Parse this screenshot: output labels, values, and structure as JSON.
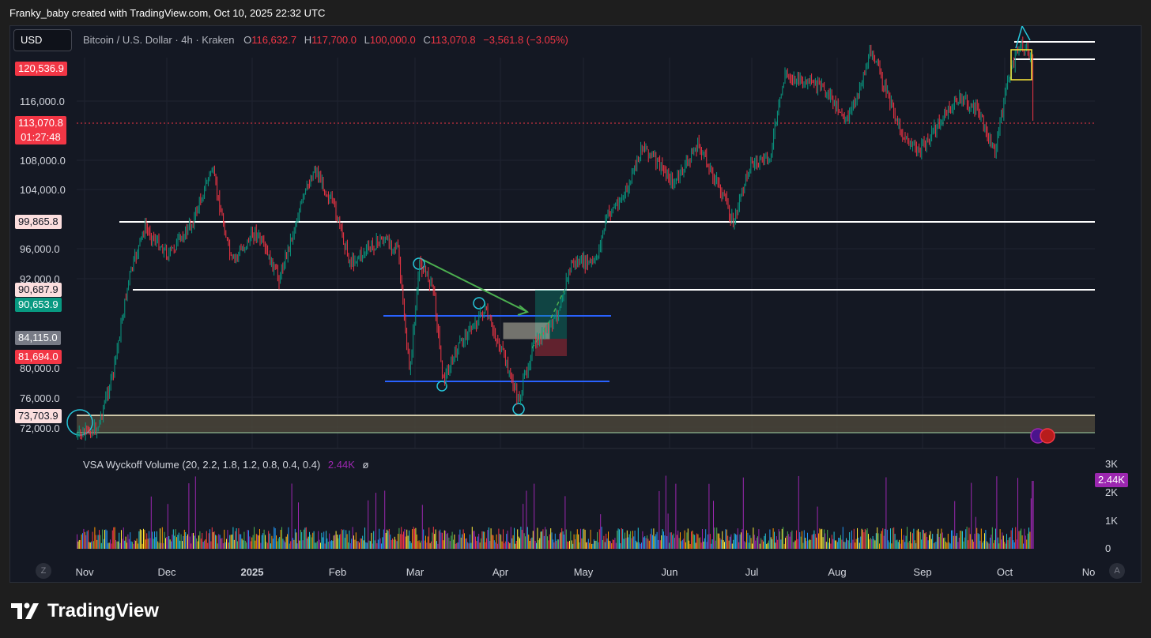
{
  "header": {
    "attribution": "Franky_baby created with TradingView.com, Oct 10, 2025 22:32 UTC"
  },
  "toolbar": {
    "currency": "USD"
  },
  "legend": {
    "symbol": "Bitcoin / U.S. Dollar · 4h · Kraken",
    "o_label": "O",
    "o_value": "116,632.7",
    "h_label": "H",
    "h_value": "117,700.0",
    "l_label": "L",
    "l_value": "100,000.0",
    "c_label": "C",
    "c_value": "113,070.8",
    "change": "−3,561.8 (−3.05%)"
  },
  "price_axis": [
    "116,000.0",
    "108,000.0",
    "104,000.0",
    "96,000.0",
    "92,000.0",
    "80,000.0",
    "76,000.0",
    "72,000.0"
  ],
  "price_tags": [
    {
      "value": "120,536.9",
      "bg": "#f23645",
      "fg": "#ffffff"
    },
    {
      "value": "113,070.8",
      "sub": "01:27:48",
      "bg": "#f23645",
      "fg": "#ffffff"
    },
    {
      "value": "99,865.8",
      "bg": "#fcdede",
      "fg": "#131722"
    },
    {
      "value": "90,687.9",
      "bg": "#fcdede",
      "fg": "#131722"
    },
    {
      "value": "90,653.9",
      "bg": "#089981",
      "fg": "#ffffff"
    },
    {
      "value": "84,115.0",
      "bg": "#787b86",
      "fg": "#ffffff"
    },
    {
      "value": "81,694.0",
      "bg": "#f23645",
      "fg": "#ffffff"
    },
    {
      "value": "73,703.9",
      "bg": "#fcdede",
      "fg": "#131722"
    }
  ],
  "time_axis": [
    "Nov",
    "Dec",
    "2025",
    "Feb",
    "Mar",
    "Apr",
    "May",
    "Jun",
    "Jul",
    "Aug",
    "Sep",
    "Oct",
    "No"
  ],
  "volume": {
    "title": "VSA Wyckoff Volume (20, 2.2, 1.8, 1.2, 0.8, 0.4, 0.4)",
    "value": "2.44K",
    "extra": "ø",
    "axis": [
      "3K",
      "2K",
      "1K",
      "0"
    ],
    "current_tag": "2.44K"
  },
  "buttons": {
    "z": "Z",
    "a": "A"
  },
  "footer": {
    "brand": "TradingView"
  },
  "colors": {
    "up": "#089981",
    "down": "#f23645",
    "bg": "#141823",
    "purple": "#9c27b0"
  }
}
